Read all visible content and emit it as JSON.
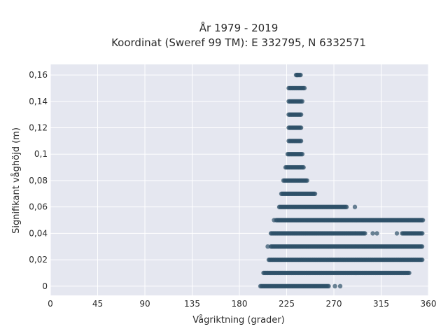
{
  "chart_data": {
    "type": "scatter",
    "title_line1": "År 1979 - 2019",
    "title_line2": "Koordinat (Sweref 99 TM): E 332795, N 6332571",
    "xlabel": "Vågriktning (grader)",
    "ylabel": "Signifikant våghöjd (m)",
    "xlim": [
      0,
      360
    ],
    "ylim": [
      -0.007,
      0.168
    ],
    "x_ticks": [
      0,
      45,
      90,
      135,
      180,
      225,
      270,
      315,
      360
    ],
    "x_tick_labels": [
      "0",
      "45",
      "90",
      "135",
      "180",
      "225",
      "270",
      "315",
      "360"
    ],
    "y_ticks": [
      0,
      0.02,
      0.04,
      0.06,
      0.08,
      0.1,
      0.12,
      0.14,
      0.16
    ],
    "y_tick_labels": [
      "0",
      "0,02",
      "0,04",
      "0,06",
      "0,08",
      "0,1",
      "0,12",
      "0,14",
      "0,16"
    ],
    "grid": true,
    "marker_color": "#2e5068",
    "background_color": "#e5e7f0",
    "point_bands": [
      {
        "y": 0.16,
        "x_min": 234,
        "x_max": 239
      },
      {
        "y": 0.15,
        "x_min": 227,
        "x_max": 242
      },
      {
        "y": 0.14,
        "x_min": 227,
        "x_max": 240
      },
      {
        "y": 0.13,
        "x_min": 227,
        "x_max": 239
      },
      {
        "y": 0.12,
        "x_min": 227,
        "x_max": 239
      },
      {
        "y": 0.11,
        "x_min": 227,
        "x_max": 239
      },
      {
        "y": 0.1,
        "x_min": 226,
        "x_max": 240
      },
      {
        "y": 0.09,
        "x_min": 224,
        "x_max": 242
      },
      {
        "y": 0.08,
        "x_min": 222,
        "x_max": 245
      },
      {
        "y": 0.07,
        "x_min": 220,
        "x_max": 252
      },
      {
        "y": 0.06,
        "x_min": 218,
        "x_max": 283
      },
      {
        "y": 0.05,
        "x_min": 215,
        "x_max": 355
      },
      {
        "y": 0.04,
        "x_min": 210,
        "x_max": 300
      },
      {
        "y": 0.04,
        "x_min": 335,
        "x_max": 355
      },
      {
        "y": 0.03,
        "x_min": 210,
        "x_max": 355
      },
      {
        "y": 0.02,
        "x_min": 208,
        "x_max": 355
      },
      {
        "y": 0.01,
        "x_min": 203,
        "x_max": 342
      },
      {
        "y": 0.0,
        "x_min": 201,
        "x_max": 265
      }
    ],
    "outlier_points": [
      {
        "x": 235,
        "y": 0.16
      },
      {
        "x": 213,
        "y": 0.05
      },
      {
        "x": 290,
        "y": 0.06
      },
      {
        "x": 307,
        "y": 0.04
      },
      {
        "x": 311,
        "y": 0.04
      },
      {
        "x": 200,
        "y": 0.0
      },
      {
        "x": 271,
        "y": 0.0
      },
      {
        "x": 276,
        "y": 0.0
      },
      {
        "x": 207,
        "y": 0.03
      },
      {
        "x": 330,
        "y": 0.04
      }
    ]
  }
}
